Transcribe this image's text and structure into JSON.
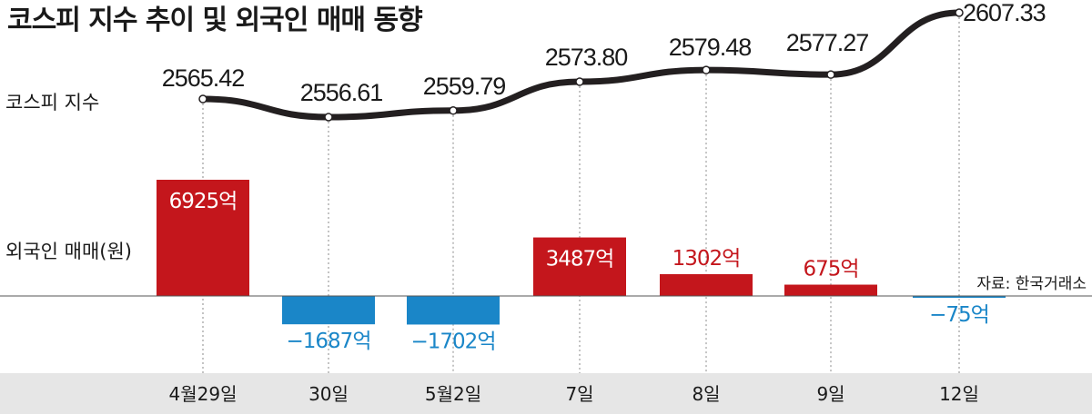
{
  "title": "코스피 지수 추이 및 외국인 매매 동향",
  "source": "자료: 한국거래소",
  "colors": {
    "positive": "#c4161c",
    "negative": "#1a86c8",
    "line": "#231f20",
    "axis_band": "#e6e6e6"
  },
  "chart_data": {
    "type": "line+bar",
    "categories": [
      "4월29일",
      "30일",
      "5월2일",
      "7일",
      "8일",
      "9일",
      "12일"
    ],
    "kospi": {
      "name": "코스피 지수",
      "values": [
        2565.42,
        2556.61,
        2559.79,
        2573.8,
        2579.48,
        2577.27,
        2607.33
      ],
      "labels": [
        "2565.42",
        "2556.61",
        "2559.79",
        "2573.80",
        "2579.48",
        "2577.27",
        "2607.33"
      ]
    },
    "foreign": {
      "name": "외국인 매매(원)",
      "values": [
        6925,
        -1687,
        -1702,
        3487,
        1302,
        675,
        -75
      ],
      "labels": [
        "6925억",
        "−1687억",
        "−1702억",
        "3487억",
        "1302억",
        "675억",
        "−75억"
      ]
    }
  }
}
